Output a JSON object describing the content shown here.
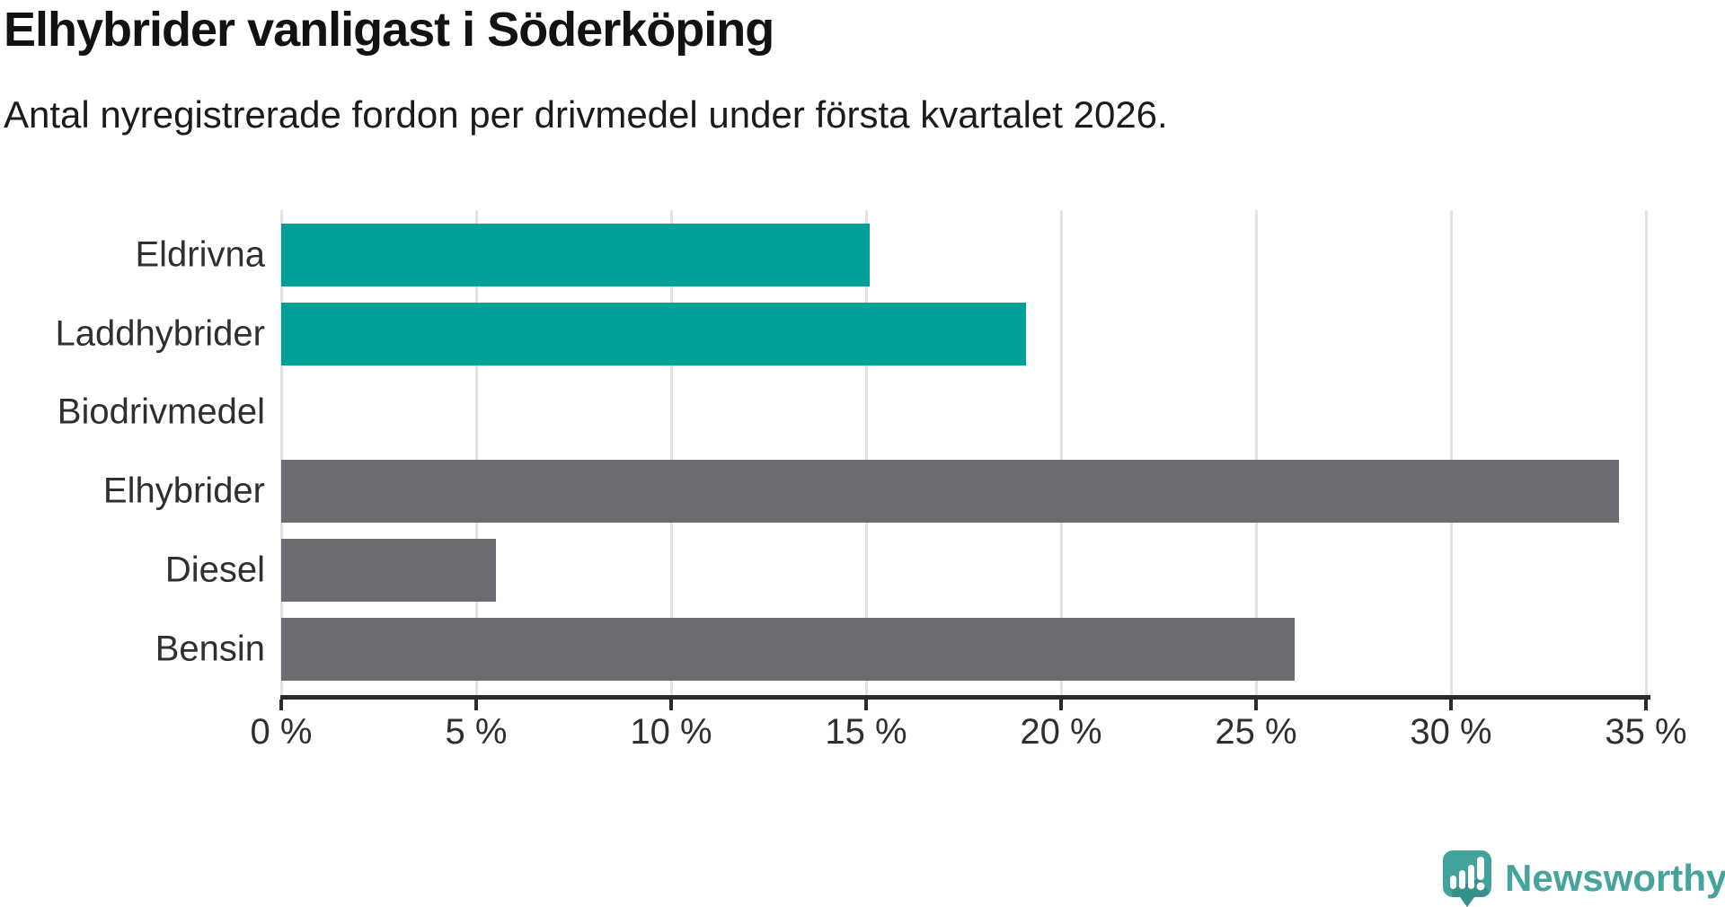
{
  "chart_data": {
    "type": "bar",
    "orientation": "horizontal",
    "title": "Elhybrider vanligast i Söderköping",
    "subtitle": "Antal nyregistrerade fordon per drivmedel under första kvartalet 2026.",
    "categories": [
      "Eldrivna",
      "Laddhybrider",
      "Biodrivmedel",
      "Elhybrider",
      "Diesel",
      "Bensin"
    ],
    "values": [
      15.1,
      19.1,
      0,
      34.3,
      5.5,
      26.0
    ],
    "unit": "%",
    "xlabel": "",
    "ylabel": "",
    "xlim": [
      0,
      35
    ],
    "x_tick_values": [
      0,
      5,
      10,
      15,
      20,
      25,
      30,
      35
    ],
    "x_tick_labels": [
      "0 %",
      "5 %",
      "10 %",
      "15 %",
      "20 %",
      "25 %",
      "30 %",
      "35 %"
    ],
    "grid": true,
    "legend": "none",
    "bar_colors": [
      "#00a099",
      "#00a099",
      "#00a099",
      "#6c6c72",
      "#6c6c72",
      "#6c6c72"
    ],
    "colors": {
      "highlight_teal": "#00a099",
      "neutral_gray": "#6c6c72",
      "gridline": "#e3e3e3",
      "axis": "#2b2b2b",
      "text": "#2f2f2f"
    }
  },
  "branding": {
    "logo_text": "Newsworthy",
    "logo_icon": "chart-speech-bubble-icon",
    "logo_color": "#46a49d",
    "logo_icon_color": "#41a39b",
    "logo_icon_shadow_color": "#2e837e"
  }
}
